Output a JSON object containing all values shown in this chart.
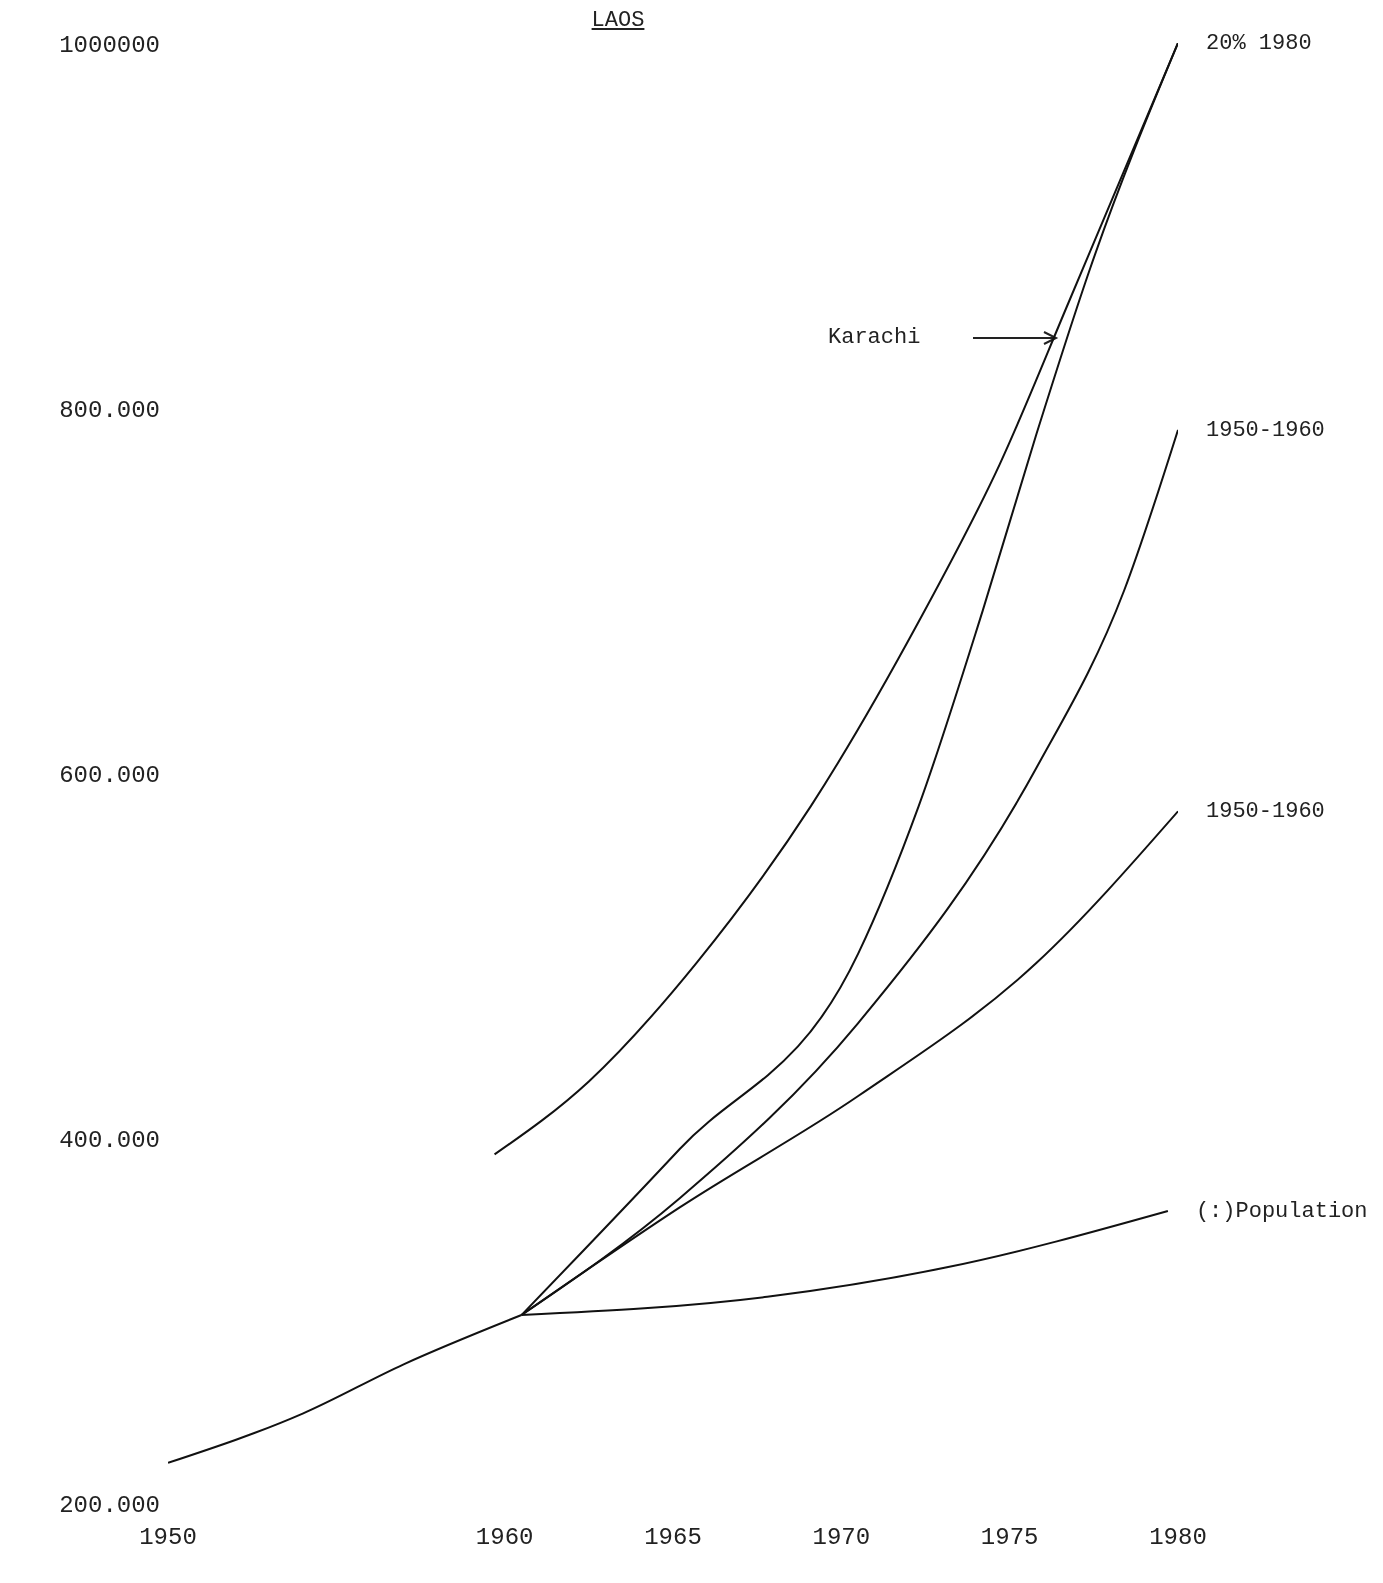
{
  "chart_data": {
    "type": "line",
    "title": "LAOS",
    "xlim": [
      1950,
      1980
    ],
    "xticks": [
      1950,
      1960,
      1965,
      1970,
      1975,
      1980
    ],
    "ylim": [
      200000,
      1000000
    ],
    "yticks": [
      {
        "value": 200000,
        "label": "200.000"
      },
      {
        "value": 400000,
        "label": "400.000"
      },
      {
        "value": 600000,
        "label": "600.000"
      },
      {
        "value": 800000,
        "label": "800.000"
      },
      1000000
    ],
    "marker": "none",
    "line_style": "solid",
    "series": [
      {
        "color": "#111111",
        "x": [
          1950,
          1954,
          1957,
          1960.5
        ],
        "values": [
          222000,
          249000,
          276000,
          303000
        ]
      },
      {
        "name": "(:)Population",
        "color": "#111111",
        "x": [
          1960.5,
          1967.8,
          1973.1,
          1979.7
        ],
        "values": [
          303000,
          313000,
          329000,
          360000
        ]
      },
      {
        "name": "1950-1960",
        "color": "#111111",
        "x": [
          1960.5,
          1965.2,
          1970.5,
          1975.8,
          1980
        ],
        "values": [
          303000,
          362000,
          423000,
          496000,
          579000
        ]
      },
      {
        "name": "1950-1960",
        "color": "#111111",
        "x": [
          1960.5,
          1965.2,
          1970.5,
          1975.8,
          1978.4,
          1980
        ],
        "values": [
          303000,
          367000,
          463000,
          603000,
          700000,
          788000
        ]
      },
      {
        "name": "20% 1980",
        "color": "#111111",
        "x": [
          1960.5,
          1965.2,
          1970.5,
          1972.3,
          1974.2,
          1975.8,
          1977.4,
          1980
        ],
        "values": [
          303000,
          394000,
          501000,
          582000,
          689000,
          786000,
          877000,
          1000000
        ]
      },
      {
        "color": "#111111",
        "x": [
          1959.7,
          1962.5,
          1965.7,
          1969.1,
          1972.3,
          1974.7,
          1976.8,
          1980
        ],
        "values": [
          391000,
          431000,
          496000,
          582000,
          683000,
          769000,
          860000,
          1000000
        ]
      }
    ],
    "annotations": [
      "Karachi"
    ]
  }
}
